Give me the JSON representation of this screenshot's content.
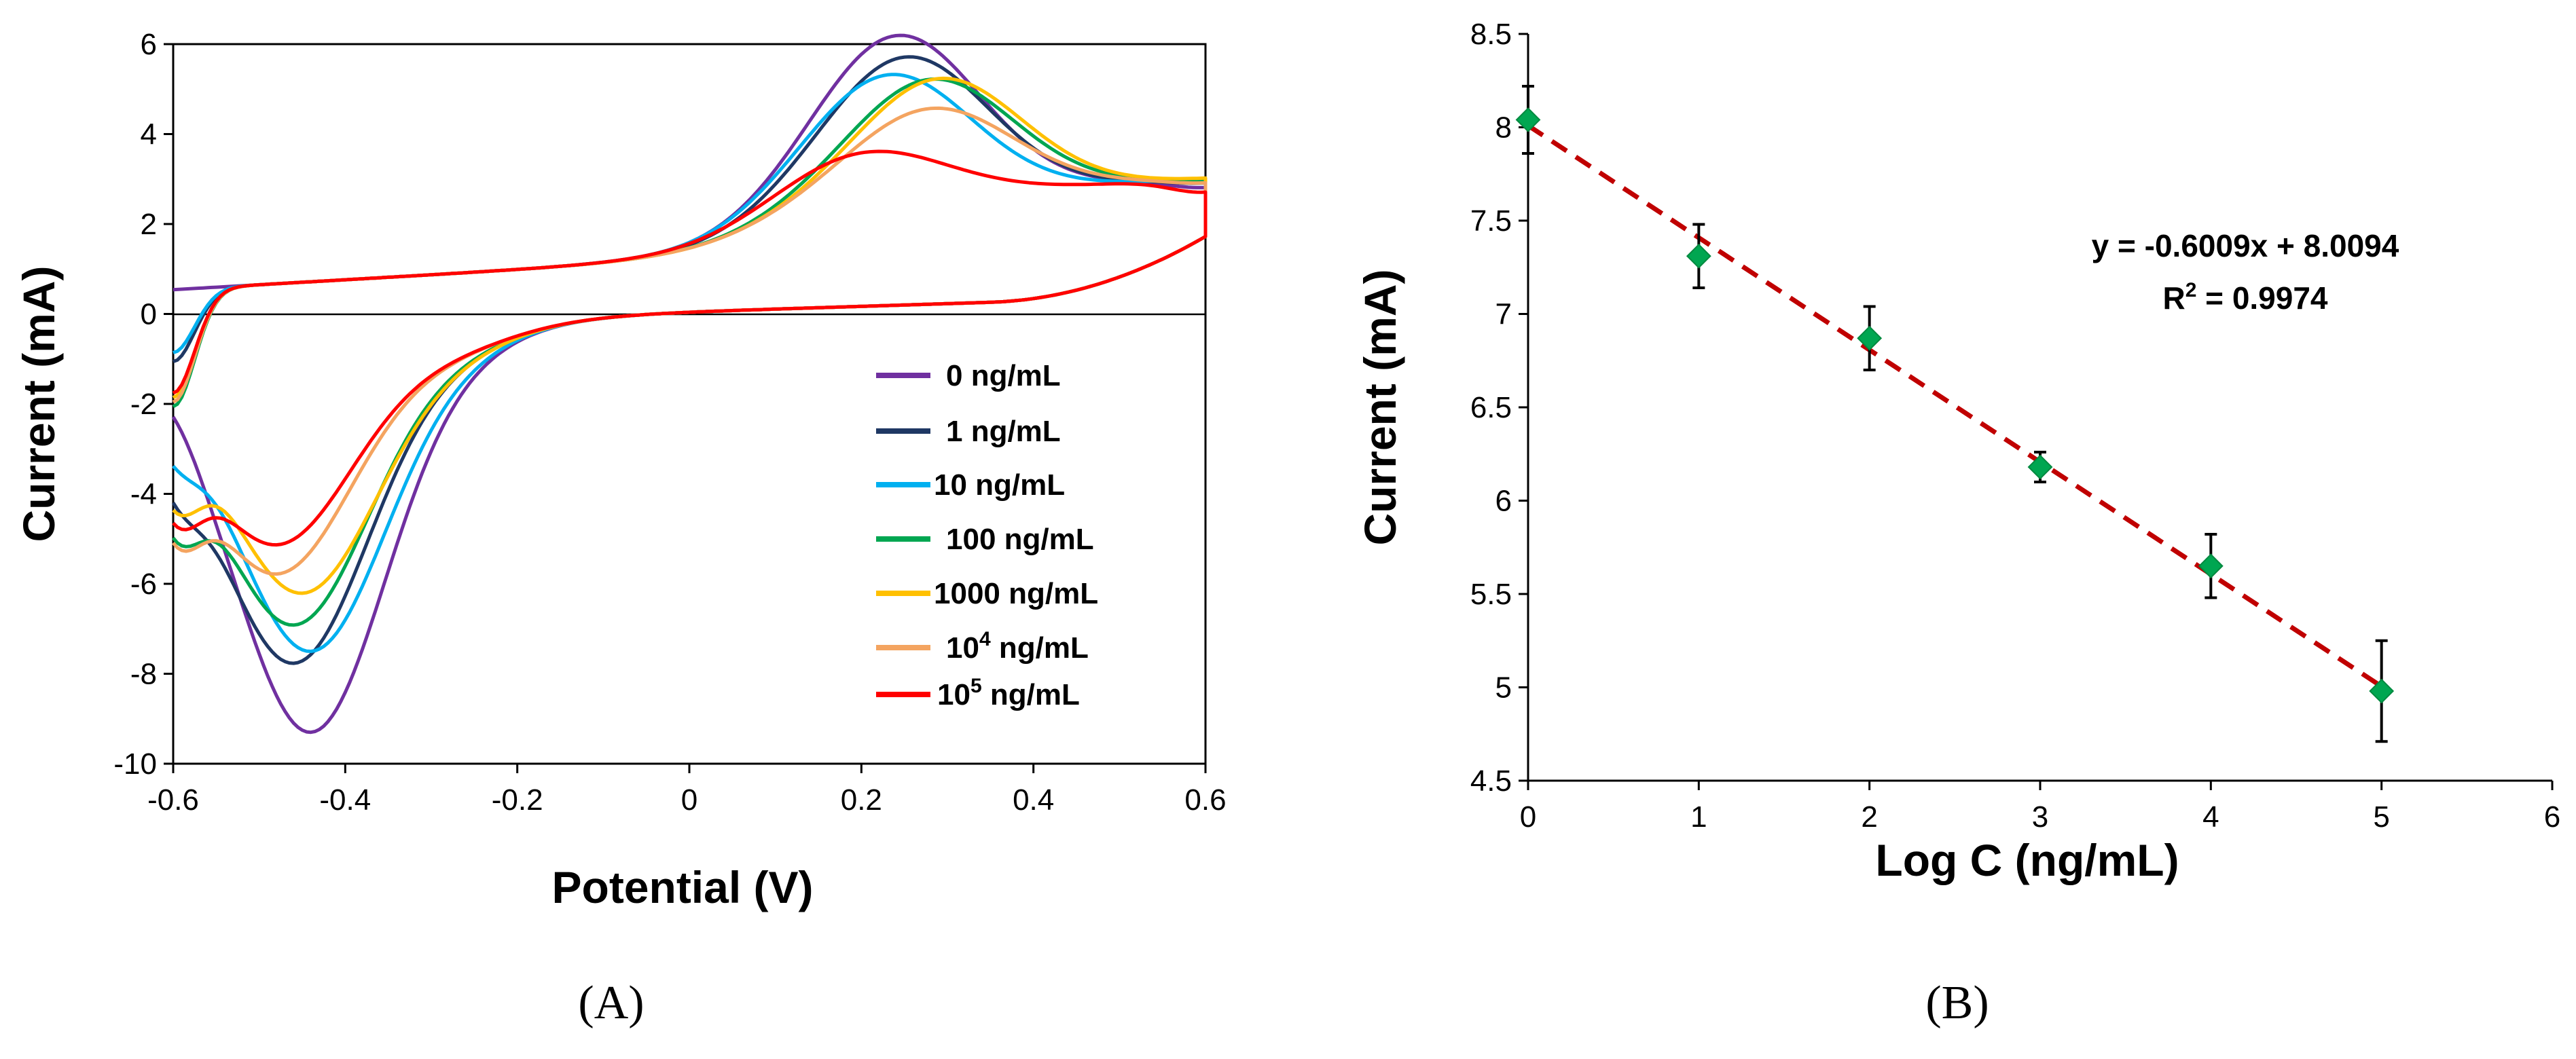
{
  "chart_data": [
    {
      "id": "A",
      "type": "line",
      "panel_label": "(A)",
      "title": "",
      "xlabel": "Potential (V)",
      "ylabel": "Current (mA)",
      "xlim": [
        -0.6,
        0.6
      ],
      "ylim": [
        -10,
        6
      ],
      "xticks": [
        -0.6,
        -0.4,
        -0.2,
        0,
        0.2,
        0.4,
        0.6
      ],
      "xtick_labels": [
        "-0.6",
        "-0.4",
        "-0.2",
        "0",
        "0.2",
        "0.4",
        "0.6"
      ],
      "yticks": [
        -10,
        -8,
        -6,
        -4,
        -2,
        0,
        2,
        4,
        6
      ],
      "ytick_labels": [
        "-10",
        "-8",
        "-6",
        "-4",
        "-2",
        "0",
        "2",
        "4",
        "6"
      ],
      "grid": false,
      "legend_position": "lower-right",
      "series": [
        {
          "name": "0 ng/mL",
          "name_main": "0 ng/mL",
          "color": "#7030a0",
          "peak_ox": [
            0.24,
            5.65
          ],
          "peak_red": [
            -0.44,
            -9.3
          ],
          "i_high": 2.3,
          "i_low": -1.0
        },
        {
          "name": "1 ng/mL",
          "name_main": "1 ng/mL",
          "color": "#1f3864",
          "peak_ox": [
            0.25,
            5.15
          ],
          "peak_red": [
            -0.46,
            -7.75
          ],
          "i_high": 2.4,
          "i_low": -2.6
        },
        {
          "name": "10 ng/mL",
          "name_main": "10 ng/mL",
          "color": "#00b0f0",
          "peak_ox": [
            0.23,
            4.8
          ],
          "peak_red": [
            -0.44,
            -7.5
          ],
          "i_high": 2.5,
          "i_low": -2.4
        },
        {
          "name": "100 ng/mL",
          "name_main": "100 ng/mL",
          "color": "#00a651",
          "peak_ox": [
            0.28,
            4.6
          ],
          "peak_red": [
            -0.46,
            -6.9
          ],
          "i_high": 2.45,
          "i_low": -3.6
        },
        {
          "name": "1000 ng/mL",
          "name_main": "1000 ng/mL",
          "color": "#ffc000",
          "peak_ox": [
            0.29,
            4.6
          ],
          "peak_red": [
            -0.45,
            -6.2
          ],
          "i_high": 2.5,
          "i_low": -3.4
        },
        {
          "name": "10^4 ng/mL",
          "name_main": "10",
          "name_sup": "4",
          "name_tail": " ng/mL",
          "color": "#f4a460",
          "peak_ox": [
            0.28,
            3.95
          ],
          "peak_red": [
            -0.48,
            -5.75
          ],
          "i_high": 2.4,
          "i_low": -3.5
        },
        {
          "name": "10^5 ng/mL",
          "name_main": "10",
          "name_sup": "5",
          "name_tail": " ng/mL",
          "color": "#ff0000",
          "peak_ox": [
            0.2,
            3.15
          ],
          "peak_red": [
            -0.48,
            -5.1
          ],
          "i_high": 2.2,
          "i_low": -3.3
        }
      ]
    },
    {
      "id": "B",
      "type": "scatter",
      "panel_label": "(B)",
      "title": "",
      "xlabel": "Log C (ng/mL)",
      "ylabel": "Current (mA)",
      "xlim": [
        0,
        6
      ],
      "ylim": [
        4.5,
        8.5
      ],
      "xticks": [
        0,
        1,
        2,
        3,
        4,
        5,
        6
      ],
      "xtick_labels": [
        "0",
        "1",
        "2",
        "3",
        "4",
        "5",
        "6"
      ],
      "yticks": [
        4.5,
        5,
        5.5,
        6,
        6.5,
        7,
        7.5,
        8,
        8.5
      ],
      "ytick_labels": [
        "4.5",
        "5",
        "5.5",
        "6",
        "6.5",
        "7",
        "7.5",
        "8",
        "8.5"
      ],
      "grid": false,
      "x": [
        0,
        1,
        2,
        3,
        4,
        5
      ],
      "y": [
        8.04,
        7.31,
        6.87,
        6.18,
        5.65,
        4.98
      ],
      "yerr": [
        0.18,
        0.17,
        0.17,
        0.08,
        0.17,
        0.27
      ],
      "marker_color": "#00a651",
      "fit": {
        "slope": -0.6009,
        "intercept": 8.0094,
        "x_range": [
          0,
          5
        ],
        "color": "#c00000",
        "equation": "y = -0.6009x + 8.0094",
        "r2_prefix": "R",
        "r2_sup": "2",
        "r2_value": " = 0.9974"
      }
    }
  ]
}
